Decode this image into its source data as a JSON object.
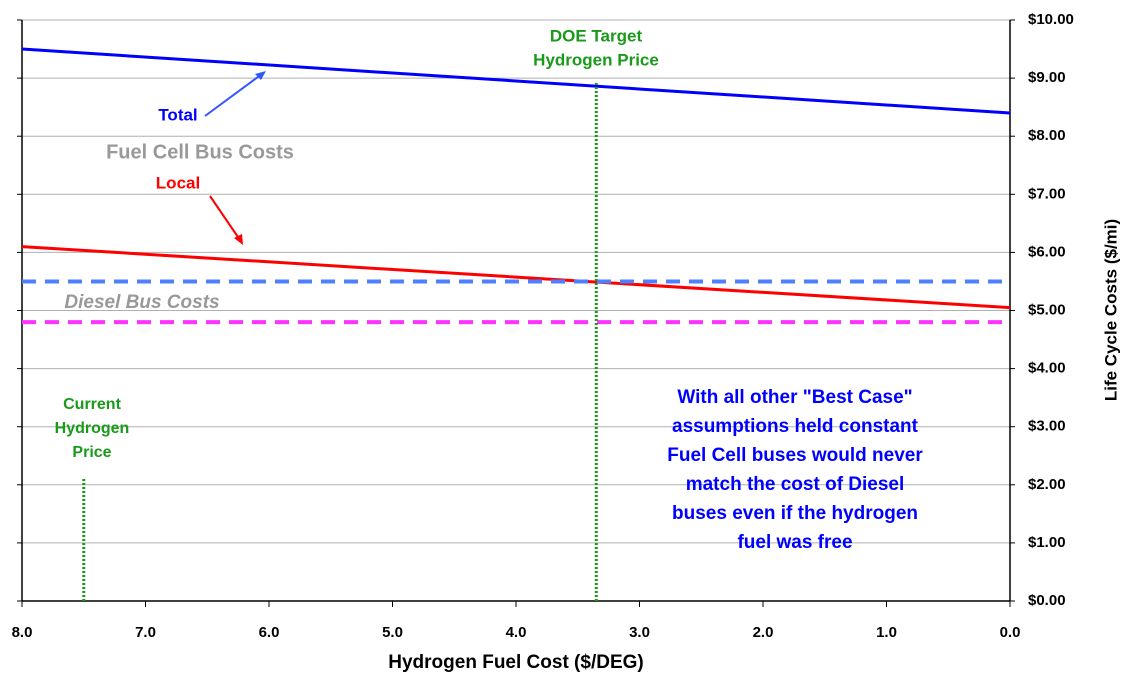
{
  "chart_data": {
    "type": "line",
    "xlabel": "Hydrogen Fuel Cost ($/DEG)",
    "ylabel": "Life Cycle Costs ($/mi)",
    "xlim": [
      8,
      0
    ],
    "ylim": [
      0,
      10
    ],
    "xticks": [
      {
        "value": 8,
        "label": "8.0"
      },
      {
        "value": 7,
        "label": "7.0"
      },
      {
        "value": 6,
        "label": "6.0"
      },
      {
        "value": 5,
        "label": "5.0"
      },
      {
        "value": 4,
        "label": "4.0"
      },
      {
        "value": 3,
        "label": "3.0"
      },
      {
        "value": 2,
        "label": "2.0"
      },
      {
        "value": 1,
        "label": "1.0"
      },
      {
        "value": 0,
        "label": "0.0"
      }
    ],
    "yticks": [
      {
        "value": 0,
        "label": "$0.00"
      },
      {
        "value": 1,
        "label": "$1.00"
      },
      {
        "value": 2,
        "label": "$2.00"
      },
      {
        "value": 3,
        "label": "$3.00"
      },
      {
        "value": 4,
        "label": "$4.00"
      },
      {
        "value": 5,
        "label": "$5.00"
      },
      {
        "value": 6,
        "label": "$6.00"
      },
      {
        "value": 7,
        "label": "$7.00"
      },
      {
        "value": 8,
        "label": "$8.00"
      },
      {
        "value": 9,
        "label": "$9.00"
      },
      {
        "value": 10,
        "label": "$10.00"
      }
    ],
    "grid": true,
    "series": [
      {
        "name": "Total",
        "color": "#0000ff",
        "x": [
          8,
          0
        ],
        "values": [
          9.5,
          8.4
        ]
      },
      {
        "name": "Local",
        "color": "#ff0000",
        "x": [
          8,
          0
        ],
        "values": [
          6.1,
          5.05
        ]
      },
      {
        "color": "#4d7fff",
        "style": "dashed",
        "x": [
          8,
          0
        ],
        "values": [
          5.5,
          5.5
        ]
      },
      {
        "color": "#ff33ff",
        "style": "dashed",
        "x": [
          8,
          0
        ],
        "values": [
          4.8,
          4.8
        ]
      },
      {
        "color": "#1a9a1a",
        "style": "dotted",
        "x": [
          3.35,
          3.35
        ],
        "values": [
          0,
          8.95
        ]
      },
      {
        "color": "#1a9a1a",
        "style": "dotted",
        "x": [
          7.5,
          7.5
        ],
        "values": [
          0,
          2.1
        ]
      }
    ],
    "annotations": [
      {
        "color": "#1a9a1a",
        "text": [
          "DOE Target",
          "Hydrogen Price"
        ]
      },
      {
        "color": "#1a9a1a",
        "text": [
          "Current",
          "Hydrogen",
          "Price"
        ]
      },
      {
        "color": "#999999",
        "text": [
          "Fuel Cell Bus Costs"
        ]
      },
      {
        "color": "#999999",
        "italic": true,
        "text": [
          "Diesel Bus Costs"
        ]
      },
      {
        "color": "#0000ff",
        "text": [
          "With all other \"Best Case\"",
          "assumptions held constant",
          "Fuel Cell buses would never",
          "match the cost of Diesel",
          "buses even if the hydrogen",
          "fuel was free"
        ]
      }
    ]
  }
}
